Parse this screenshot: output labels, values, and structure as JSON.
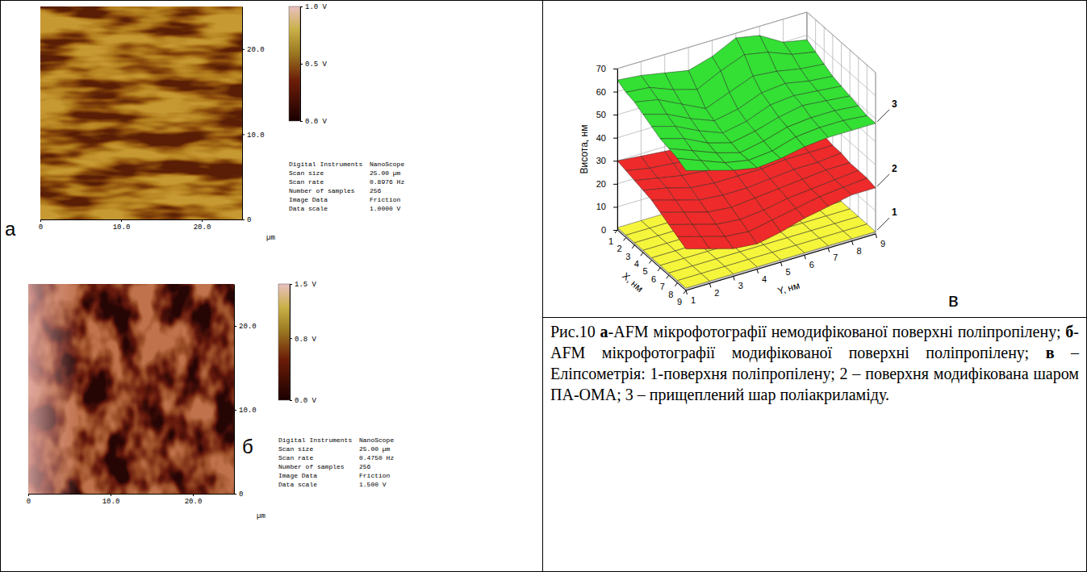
{
  "afm": [
    {
      "letter": "а",
      "xlim": [
        0,
        25
      ],
      "ylim": [
        0,
        25
      ],
      "x_ticks": [
        0,
        {
          "value": 10,
          "label": "10.0"
        },
        {
          "value": 20,
          "label": "20.0"
        }
      ],
      "y_ticks": [
        0,
        {
          "value": 10,
          "label": "10.0"
        },
        {
          "value": 20,
          "label": "20.0"
        }
      ],
      "unit": "µm",
      "colorbar": {
        "range": [
          0,
          1.0
        ],
        "ticks": [
          {
            "value": 0,
            "label": "0.0 V"
          },
          {
            "value": 0.5,
            "label": "0.5 V"
          },
          {
            "value": 1.0,
            "label": "1.0 V"
          }
        ]
      },
      "info": [
        [
          "Digital Instruments",
          "NanoScope"
        ],
        [
          "Scan size",
          "25.00 µm"
        ],
        [
          "Scan rate",
          "0.8976 Hz"
        ],
        [
          "Number of samples",
          "256"
        ],
        [
          "Image Data",
          "Friction"
        ],
        [
          "Data scale",
          "1.0000 V"
        ]
      ]
    },
    {
      "letter": "б",
      "xlim": [
        0,
        25
      ],
      "ylim": [
        0,
        25
      ],
      "x_ticks": [
        0,
        {
          "value": 10,
          "label": "10.0"
        },
        {
          "value": 20,
          "label": "20.0"
        }
      ],
      "y_ticks": [
        0,
        {
          "value": 10,
          "label": "10.0"
        },
        {
          "value": 20,
          "label": "20.0"
        }
      ],
      "unit": "µm",
      "colorbar": {
        "range": [
          0,
          1.5
        ],
        "ticks": [
          {
            "value": 0,
            "label": "0.0 V"
          },
          {
            "value": 0.8,
            "label": "0.8 V"
          },
          {
            "value": 1.5,
            "label": "1.5 V"
          }
        ]
      },
      "info": [
        [
          "Digital Instruments",
          "NanoScope"
        ],
        [
          "Scan size",
          "25.00 µm"
        ],
        [
          "Scan rate",
          "0.4750 Hz"
        ],
        [
          "Number of samples",
          "256"
        ],
        [
          "Image Data",
          "Friction"
        ],
        [
          "Data scale",
          "1.500 V"
        ]
      ]
    }
  ],
  "chart_data": {
    "type": "surface3d",
    "panel_label": "в",
    "x_label": "X, нм",
    "y_label": "Y, нм",
    "z_label": "Висота, нм",
    "x": [
      1,
      2,
      3,
      4,
      5,
      6,
      7,
      8,
      9
    ],
    "y": [
      1,
      2,
      3,
      4,
      5,
      6,
      7,
      8,
      9
    ],
    "xlim": [
      1,
      9
    ],
    "ylim": [
      1,
      9
    ],
    "zlim": [
      0,
      70
    ],
    "xticks": [
      1,
      2,
      3,
      4,
      5,
      6,
      7,
      8,
      9
    ],
    "yticks": [
      1,
      2,
      3,
      4,
      5,
      6,
      7,
      8,
      9
    ],
    "zticks": [
      0,
      10,
      20,
      30,
      40,
      50,
      60,
      70
    ],
    "grid": true,
    "series": [
      {
        "name": "1",
        "color": "#f5f53c",
        "values": [
          [
            1,
            1,
            1,
            1,
            1,
            1,
            1,
            1,
            1
          ],
          [
            1,
            1,
            1,
            1,
            1,
            1,
            1,
            1,
            1
          ],
          [
            1,
            1,
            1,
            1,
            1,
            1,
            1,
            1,
            1
          ],
          [
            1,
            1,
            1,
            1,
            1,
            1,
            1,
            1,
            1
          ],
          [
            1,
            1,
            1,
            1,
            1,
            1,
            1,
            1,
            1
          ],
          [
            1,
            1,
            1,
            1,
            1,
            1,
            1,
            1,
            1
          ],
          [
            1,
            1,
            1,
            1,
            1,
            1,
            1,
            1,
            1
          ],
          [
            1,
            1,
            1,
            1,
            1,
            1,
            1,
            1,
            1
          ],
          [
            1,
            1,
            1,
            1,
            1,
            1,
            1,
            1,
            1
          ]
        ]
      },
      {
        "name": "2",
        "color": "#ee2a2a",
        "values": [
          [
            30,
            29,
            28,
            27,
            27,
            26,
            26,
            25,
            25
          ],
          [
            29,
            27,
            26,
            25,
            25,
            25,
            24,
            24,
            24
          ],
          [
            28,
            26,
            24,
            23,
            23,
            23,
            23,
            23,
            23
          ],
          [
            27,
            25,
            22,
            21,
            21,
            21,
            22,
            22,
            22
          ],
          [
            26,
            23,
            20,
            19,
            19,
            20,
            21,
            21,
            22
          ],
          [
            24,
            21,
            18,
            17,
            18,
            19,
            20,
            21,
            21
          ],
          [
            22,
            19,
            16,
            15,
            16,
            18,
            19,
            20,
            21
          ],
          [
            20,
            17,
            14,
            13,
            15,
            17,
            19,
            20,
            21
          ],
          [
            18,
            15,
            12,
            11,
            13,
            16,
            18,
            20,
            20
          ]
        ]
      },
      {
        "name": "3",
        "color": "#33e033",
        "values": [
          [
            65,
            64,
            62,
            60,
            63,
            68,
            66,
            60,
            58
          ],
          [
            63,
            62,
            58,
            55,
            60,
            64,
            62,
            58,
            56
          ],
          [
            62,
            60,
            55,
            50,
            54,
            58,
            57,
            55,
            54
          ],
          [
            60,
            57,
            52,
            48,
            50,
            54,
            55,
            53,
            52
          ],
          [
            58,
            55,
            50,
            46,
            48,
            52,
            53,
            52,
            51
          ],
          [
            56,
            53,
            48,
            45,
            47,
            50,
            52,
            51,
            50
          ],
          [
            55,
            51,
            47,
            44,
            46,
            49,
            50,
            50,
            49
          ],
          [
            54,
            50,
            46,
            44,
            45,
            48,
            49,
            49,
            48
          ],
          [
            52,
            49,
            46,
            44,
            45,
            47,
            48,
            48,
            48
          ]
        ]
      }
    ]
  },
  "caption": [
    {
      "text": "Рис.10 ",
      "bold": false
    },
    {
      "text": "а",
      "bold": true
    },
    {
      "text": "-AFM мікрофотографії немодифікованої поверхні поліпропілену; ",
      "bold": false
    },
    {
      "text": "б",
      "bold": true
    },
    {
      "text": "-AFM мікрофотографії модифікованої поверхні поліпропілену; ",
      "bold": false
    },
    {
      "text": "в",
      "bold": true
    },
    {
      "text": " – Еліпсометрія: 1-поверхня поліпропілену; 2 – поверхня модифікована шаром ПА-ОМА; 3 – прищеплений шар поліакриламіду.",
      "bold": false
    }
  ]
}
